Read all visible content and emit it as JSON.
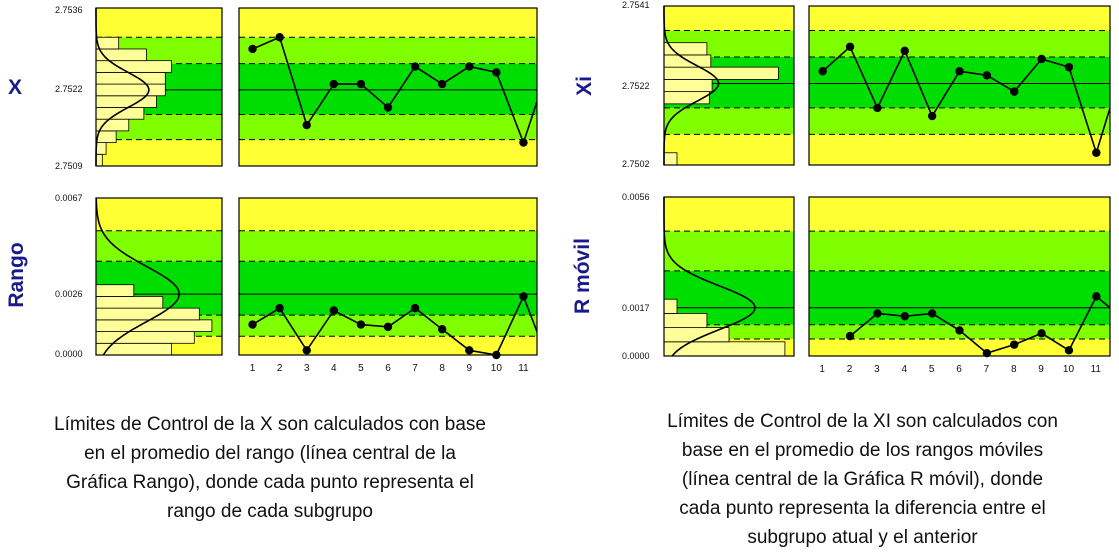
{
  "colors": {
    "yellow": "#ffff33",
    "light_green": "#80ff00",
    "green": "#00dd00",
    "hist_fill": "#ffff99",
    "line": "#000000",
    "label_color": "#1a1a8c"
  },
  "left": {
    "top_label": "X",
    "bottom_label": "Rango",
    "caption": "Límites de Control de la X son calculados con base en el promedio del rango (línea central de la Gráfica Rango), donde cada punto representa el rango de cada subgrupo",
    "caption_lines": [
      "Límites de Control de la X son calculados con base",
      "en el promedio del rango (línea central de la",
      "Gráfica Rango), donde cada punto representa el",
      "rango de cada subgrupo"
    ]
  },
  "right": {
    "top_label": "Xi",
    "bottom_label": "R móvil",
    "caption": "Límites de Control de la XI son calculados con base en el promedio de los rangos móviles (línea central de la Gráfica R móvil), donde cada punto representa la diferencia entre el subgrupo atual y el anterior",
    "caption_lines": [
      "Límites de Control de la XI son calculados con",
      "base en el promedio de los rangos móviles",
      "(línea central de la Gráfica R móvil), donde",
      "cada punto representa la diferencia entre el",
      "subgrupo atual y el anterior"
    ]
  },
  "chart_data": [
    {
      "type": "line",
      "title": "",
      "ylabel": "X",
      "yticks": [
        "2.7536",
        "2.7522",
        "2.7509"
      ],
      "ylim": [
        2.7509,
        2.7536
      ],
      "center_line": 2.7522,
      "x": [
        1,
        2,
        3,
        4,
        5,
        6,
        7,
        8,
        9,
        10,
        11
      ],
      "xlim": [
        0.5,
        11.5
      ],
      "values": [
        2.7529,
        2.7531,
        2.7516,
        2.7523,
        2.7523,
        2.7519,
        2.7526,
        2.7523,
        2.7526,
        2.7525,
        2.7513
      ],
      "trailing_value": 2.752,
      "zone_bounds": [
        2.7509,
        2.75135,
        2.75178,
        2.7522,
        2.75265,
        2.7531,
        2.7536
      ],
      "histogram": {
        "bin_edges": [
          2.7509,
          2.7511,
          2.7513,
          2.7515,
          2.7517,
          2.7519,
          2.7521,
          2.7523,
          2.7525,
          2.7527,
          2.7529,
          2.7531
        ],
        "widths": [
          0.05,
          0.08,
          0.16,
          0.26,
          0.38,
          0.48,
          0.55,
          0.55,
          0.6,
          0.4,
          0.18
        ]
      }
    },
    {
      "type": "line",
      "title": "",
      "ylabel": "Rango",
      "yticks": [
        "0.0067",
        "0.0026",
        "0.0000"
      ],
      "ylim": [
        0,
        0.0067
      ],
      "center_line": 0.0026,
      "x": [
        1,
        2,
        3,
        4,
        5,
        6,
        7,
        8,
        9,
        10,
        11
      ],
      "xlim": [
        0.5,
        11.5
      ],
      "xticks": [
        "1",
        "2",
        "3",
        "4",
        "5",
        "6",
        "7",
        "8",
        "9",
        "10",
        "11"
      ],
      "values": [
        0.0013,
        0.002,
        0.0002,
        0.0019,
        0.0013,
        0.0012,
        0.002,
        0.0011,
        0.0002,
        0.0,
        0.0025
      ],
      "trailing_value": 0.001,
      "zone_bounds": [
        0,
        0.0008,
        0.0017,
        0.0026,
        0.004,
        0.0053,
        0.0067
      ],
      "histogram": {
        "bin_edges": [
          0,
          0.0005,
          0.001,
          0.0015,
          0.002,
          0.0025,
          0.003
        ],
        "widths": [
          0.6,
          0.78,
          0.92,
          0.82,
          0.53,
          0.3
        ]
      }
    },
    {
      "type": "line",
      "title": "",
      "ylabel": "Xi",
      "yticks": [
        "2.7541",
        "2.7522",
        "2.7502"
      ],
      "ylim": [
        2.7502,
        2.7541
      ],
      "center_line": 2.7522,
      "x": [
        1,
        2,
        3,
        4,
        5,
        6,
        7,
        8,
        9,
        10,
        11
      ],
      "xlim": [
        0.5,
        11.5
      ],
      "values": [
        2.7525,
        2.7531,
        2.7516,
        2.753,
        2.7514,
        2.7525,
        2.7524,
        2.752,
        2.7528,
        2.7526,
        2.7505
      ],
      "trailing_value": 2.7516,
      "zone_bounds": [
        2.7502,
        2.75095,
        2.7516,
        2.7522,
        2.75285,
        2.7535,
        2.7541
      ],
      "histogram": {
        "bin_edges": [
          2.7502,
          2.7505,
          2.7508,
          2.7511,
          2.7514,
          2.7517,
          2.752,
          2.7523,
          2.7526,
          2.7529,
          2.7532
        ],
        "widths": [
          0.1,
          0,
          0,
          0,
          0,
          0.35,
          0.37,
          0.88,
          0.36,
          0.33
        ]
      }
    },
    {
      "type": "line",
      "title": "",
      "ylabel": "R móvil",
      "yticks": [
        "0.0056",
        "0.0017",
        "0.0000"
      ],
      "ylim": [
        0,
        0.0056
      ],
      "center_line": 0.0017,
      "x": [
        1,
        2,
        3,
        4,
        5,
        6,
        7,
        8,
        9,
        10,
        11
      ],
      "xlim": [
        0.5,
        11.5
      ],
      "xticks": [
        "1",
        "2",
        "3",
        "4",
        "5",
        "6",
        "7",
        "8",
        "9",
        "10",
        "11"
      ],
      "values": [
        null,
        0.0007,
        0.0015,
        0.0014,
        0.0015,
        0.0009,
        0.0001,
        0.0004,
        0.0008,
        0.0002,
        0.0021
      ],
      "trailing_value": 0.0017,
      "zone_bounds": [
        0,
        0.0006,
        0.0011,
        0.0017,
        0.003,
        0.0044,
        0.0056
      ],
      "histogram": {
        "bin_edges": [
          0,
          0.0005,
          0.001,
          0.0015,
          0.002
        ],
        "widths": [
          0.93,
          0.5,
          0.33,
          0.1
        ]
      }
    }
  ]
}
